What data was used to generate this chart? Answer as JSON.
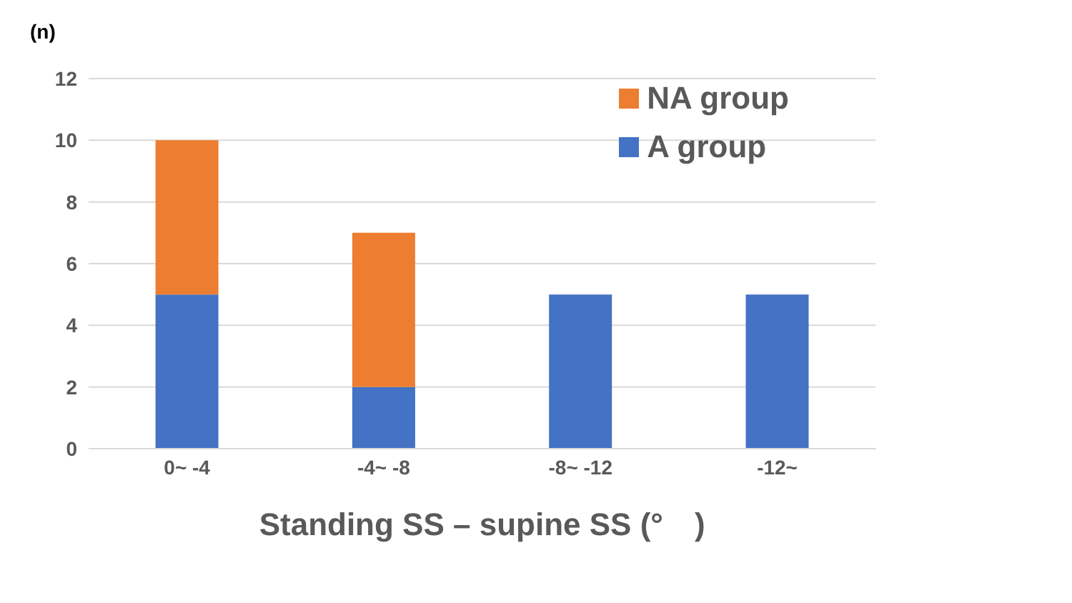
{
  "chart_data": {
    "type": "bar",
    "stacked": true,
    "ylabel": "(n)",
    "xlabel": "Standing SS – supine SS (°　)",
    "categories": [
      "0~ -4",
      "-4~ -8",
      "-8~ -12",
      "-12~"
    ],
    "series": [
      {
        "name": "A group",
        "color": "#4472c4",
        "values": [
          5,
          2,
          5,
          5
        ]
      },
      {
        "name": "NA group",
        "color": "#ed7d31",
        "values": [
          5,
          5,
          0,
          0
        ]
      }
    ],
    "ylim": [
      0,
      12
    ],
    "yticks": [
      0,
      2,
      4,
      6,
      8,
      10,
      12
    ],
    "grid": "y",
    "legend": "top right"
  }
}
